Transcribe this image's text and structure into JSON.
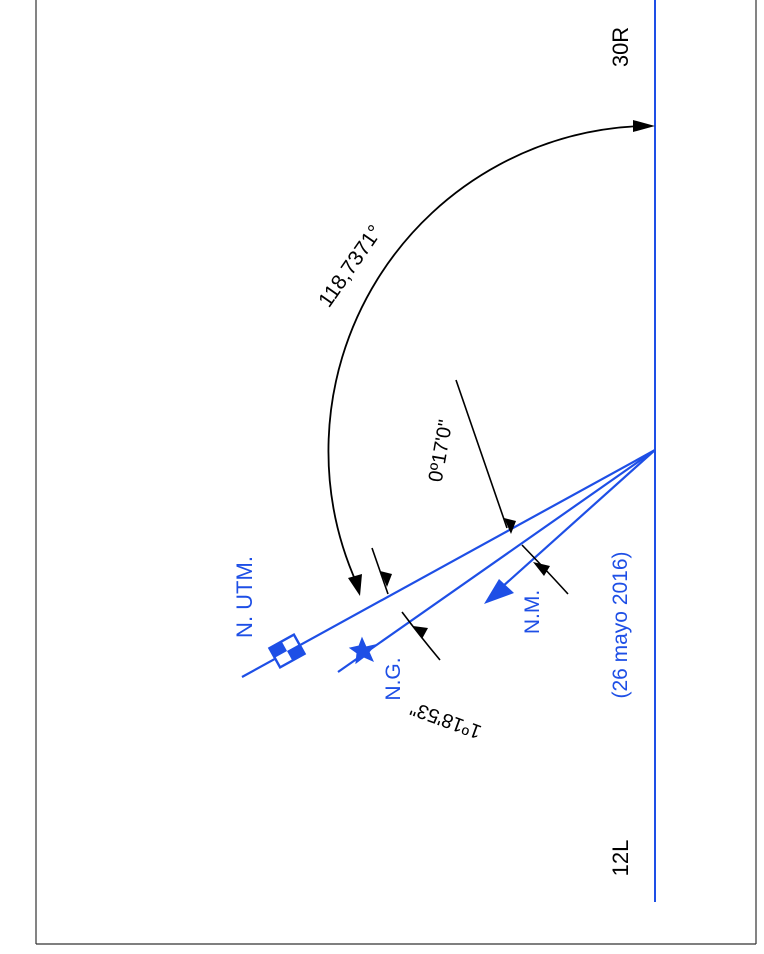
{
  "colors": {
    "lines": "#1e4fe6",
    "dimensions": "#000000",
    "border": "#333333"
  },
  "runway": {
    "threshold_top": "30R",
    "threshold_bottom": "12L"
  },
  "north_labels": {
    "utm": "N. UTM.",
    "geographic": "N.G.",
    "magnetic": "N.M.",
    "date": "(26 mayo 2016)"
  },
  "angles": {
    "runway_bearing": "118,7371°",
    "magnetic_offset": "0º17'0\"",
    "convergence": "1º18'53\""
  },
  "icons": {
    "utm": "utm-grid-symbol-icon",
    "geographic": "star-icon",
    "magnetic": "arrowhead-icon"
  }
}
